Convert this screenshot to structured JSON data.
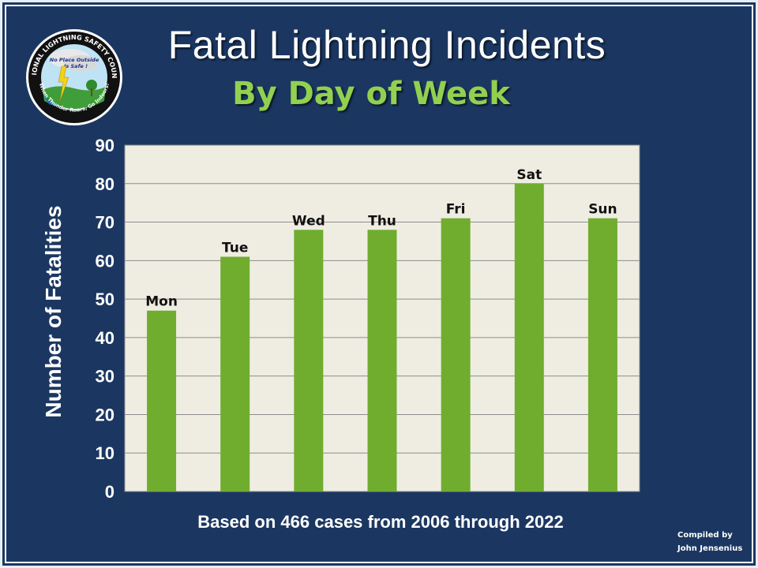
{
  "title": "Fatal Lightning Incidents",
  "subtitle": "By Day of Week",
  "logo": {
    "ring_text_top": "NATIONAL LIGHTNING SAFETY COUNCIL",
    "ring_text_bottom": "When Thunder Roars, Go Indoors!",
    "cloud_line1": "No Place Outside",
    "cloud_line2": "Is Safe !"
  },
  "footnote": "Based on 466 cases from 2006 through 2022",
  "credit_line1": "Compiled by",
  "credit_line2": "John Jensenius",
  "colors": {
    "background": "#1b3761",
    "plot_area": "#efede2",
    "bar": "#70ad2f",
    "subtitle": "#92d050",
    "gridline": "#8c8c8c"
  },
  "chart_data": {
    "type": "bar",
    "categories": [
      "Mon",
      "Tue",
      "Wed",
      "Thu",
      "Fri",
      "Sat",
      "Sun"
    ],
    "values": [
      47,
      61,
      68,
      68,
      71,
      80,
      71
    ],
    "ylabel": "Number of Fatalities",
    "xlabel": "",
    "ylim": [
      0,
      90
    ],
    "yticks": [
      "0",
      "10",
      "20",
      "30",
      "40",
      "50",
      "60",
      "70",
      "80",
      "90"
    ],
    "grid": true,
    "data_labels": "category names above bars",
    "legend": "none"
  }
}
